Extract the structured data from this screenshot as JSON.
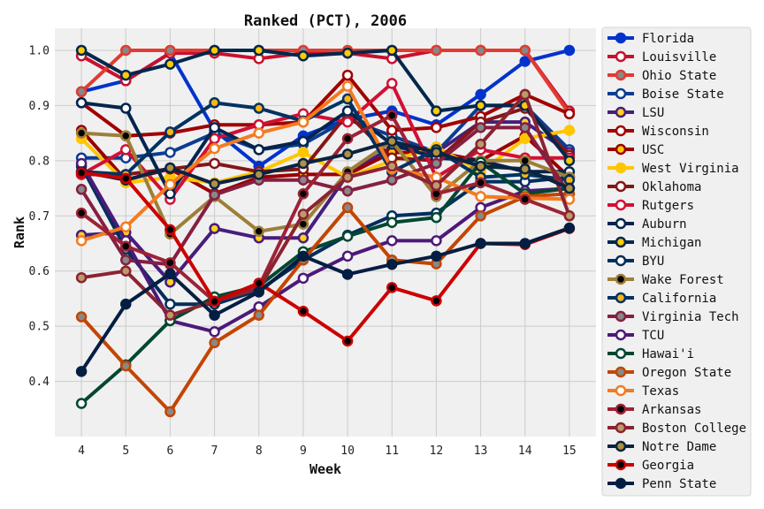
{
  "chart_data": {
    "type": "line",
    "title": "Ranked (PCT), 2006",
    "xlabel": "Week",
    "ylabel": "Rank",
    "x": [
      4,
      5,
      6,
      7,
      8,
      9,
      10,
      11,
      12,
      13,
      14,
      15
    ],
    "xlim": [
      3.4,
      15.6
    ],
    "ylim": [
      0.3,
      1.04
    ],
    "yticks": [
      0.4,
      0.5,
      0.6,
      0.7,
      0.8,
      0.9,
      1.0
    ],
    "yticklabels": [
      "0.4",
      "0.5",
      "0.6",
      "0.7",
      "0.8",
      "0.9",
      "1.0"
    ],
    "grid": true,
    "legend_position": "right",
    "series": [
      {
        "name": "Florida",
        "color": "#0033cc",
        "face": "#0033cc",
        "values": [
          0.925,
          0.945,
          0.995,
          0.855,
          0.79,
          0.845,
          0.875,
          0.89,
          0.865,
          0.92,
          0.98,
          1.0
        ]
      },
      {
        "name": "Louisville",
        "color": "#c8102e",
        "face": "#ffffff",
        "values": [
          0.99,
          0.945,
          0.995,
          0.995,
          0.985,
          0.995,
          0.995,
          0.985,
          1.0,
          1.0,
          1.0,
          0.89
        ]
      },
      {
        "name": "Ohio State",
        "color": "#e03c31",
        "face": "#888888",
        "values": [
          0.925,
          1.0,
          1.0,
          1.0,
          1.0,
          1.0,
          1.0,
          1.0,
          1.0,
          1.0,
          1.0,
          0.885
        ]
      },
      {
        "name": "Boise State",
        "color": "#0b3d91",
        "face": "#ffffff",
        "values": [
          0.805,
          0.805,
          0.815,
          0.85,
          0.82,
          0.83,
          0.875,
          0.845,
          0.815,
          0.9,
          0.9,
          0.82
        ]
      },
      {
        "name": "LSU",
        "color": "#461d7c",
        "face": "#fdd023",
        "values": [
          0.665,
          0.67,
          0.58,
          0.677,
          0.66,
          0.66,
          0.775,
          0.825,
          0.815,
          0.87,
          0.87,
          0.815
        ]
      },
      {
        "name": "Wisconsin",
        "color": "#a00000",
        "face": "#ffffff",
        "values": [
          0.905,
          0.845,
          0.85,
          0.865,
          0.865,
          0.87,
          0.955,
          0.855,
          0.86,
          0.88,
          0.92,
          0.885
        ]
      },
      {
        "name": "USC",
        "color": "#990000",
        "face": "#ffcc00",
        "values": [
          0.855,
          0.765,
          0.785,
          0.74,
          0.77,
          0.775,
          0.775,
          0.815,
          0.815,
          0.8,
          0.845,
          0.77
        ]
      },
      {
        "name": "West Virginia",
        "color": "#ffc600",
        "face": "#ffc600",
        "values": [
          0.84,
          0.76,
          0.77,
          0.76,
          0.78,
          0.815,
          0.77,
          0.8,
          0.825,
          0.78,
          0.84,
          0.855
        ]
      },
      {
        "name": "Oklahoma",
        "color": "#841617",
        "face": "#ffffff",
        "values": [
          0.775,
          0.775,
          0.785,
          0.795,
          0.78,
          0.785,
          0.885,
          0.805,
          0.8,
          0.87,
          0.895,
          0.81
        ]
      },
      {
        "name": "Rutgers",
        "color": "#d21034",
        "face": "#ffffff",
        "values": [
          0.775,
          0.82,
          0.73,
          0.84,
          0.865,
          0.885,
          0.87,
          0.94,
          0.77,
          0.82,
          0.805,
          0.805
        ]
      },
      {
        "name": "Auburn",
        "color": "#03244d",
        "face": "#ffffff",
        "values": [
          0.905,
          0.895,
          0.74,
          0.86,
          0.82,
          0.835,
          0.89,
          0.83,
          0.805,
          0.8,
          0.78,
          0.78
        ]
      },
      {
        "name": "Michigan",
        "color": "#00274c",
        "face": "#ffcb05",
        "values": [
          1.0,
          0.955,
          0.975,
          1.0,
          1.0,
          0.99,
          0.995,
          1.0,
          0.89,
          0.9,
          0.9,
          0.8
        ]
      },
      {
        "name": "BYU",
        "color": "#002e5d",
        "face": "#ffffff",
        "values": [
          0.79,
          0.64,
          0.54,
          0.54,
          0.565,
          0.62,
          0.665,
          0.7,
          0.705,
          0.762,
          0.762,
          0.77
        ]
      },
      {
        "name": "Wake Forest",
        "color": "#9e7e38",
        "face": "#000000",
        "values": [
          0.85,
          0.845,
          0.667,
          0.735,
          0.672,
          0.685,
          0.78,
          0.835,
          0.735,
          0.8,
          0.8,
          0.77
        ]
      },
      {
        "name": "California",
        "color": "#003262",
        "face": "#fdb515",
        "values": [
          0.78,
          0.775,
          0.852,
          0.905,
          0.895,
          0.872,
          0.912,
          0.78,
          0.82,
          0.77,
          0.775,
          0.765
        ]
      },
      {
        "name": "Virginia Tech",
        "color": "#861f41",
        "face": "#888888",
        "values": [
          0.748,
          0.62,
          0.612,
          0.738,
          0.765,
          0.765,
          0.745,
          0.765,
          0.795,
          0.86,
          0.86,
          0.74
        ]
      },
      {
        "name": "TCU",
        "color": "#4d1979",
        "face": "#ffffff",
        "values": [
          0.795,
          0.655,
          0.51,
          0.49,
          0.535,
          0.587,
          0.627,
          0.655,
          0.655,
          0.715,
          0.745,
          0.75
        ]
      },
      {
        "name": "Hawai'i",
        "color": "#024731",
        "face": "#ffffff",
        "values": [
          0.36,
          0.43,
          0.51,
          0.553,
          0.573,
          0.635,
          0.663,
          0.688,
          0.697,
          0.797,
          0.74,
          0.75
        ]
      },
      {
        "name": "Oregon State",
        "color": "#c34500",
        "face": "#888888",
        "values": [
          0.517,
          0.428,
          0.345,
          0.47,
          0.52,
          0.62,
          0.715,
          0.62,
          0.613,
          0.7,
          0.735,
          0.74
        ]
      },
      {
        "name": "Texas",
        "color": "#f47b20",
        "face": "#ffffff",
        "values": [
          0.655,
          0.68,
          0.757,
          0.822,
          0.85,
          0.87,
          0.935,
          0.785,
          0.77,
          0.735,
          0.732,
          0.73
        ]
      },
      {
        "name": "Arkansas",
        "color": "#9d2235",
        "face": "#000000",
        "values": [
          0.705,
          0.645,
          0.615,
          0.545,
          0.572,
          0.74,
          0.84,
          0.882,
          0.74,
          0.76,
          0.73,
          0.7
        ]
      },
      {
        "name": "Boston College",
        "color": "#8b2332",
        "face": "#bc9b6a",
        "values": [
          0.588,
          0.6,
          0.52,
          0.545,
          0.568,
          0.703,
          0.77,
          0.79,
          0.755,
          0.83,
          0.92,
          0.7
        ]
      },
      {
        "name": "Notre Dame",
        "color": "#0c2340",
        "face": "#ae9142",
        "values": [
          0.78,
          0.765,
          0.787,
          0.758,
          0.775,
          0.795,
          0.812,
          0.835,
          0.815,
          0.79,
          0.785,
          0.75
        ]
      },
      {
        "name": "Georgia",
        "color": "#cc0000",
        "face": "#000000",
        "values": [
          0.778,
          0.768,
          0.675,
          0.545,
          0.578,
          0.527,
          0.473,
          0.57,
          0.546,
          0.65,
          0.648,
          0.677
        ]
      },
      {
        "name": "Penn State",
        "color": "#041e42",
        "face": "#041e42",
        "values": [
          0.418,
          0.54,
          0.595,
          0.52,
          0.562,
          0.627,
          0.594,
          0.612,
          0.627,
          0.65,
          0.65,
          0.678
        ]
      }
    ]
  }
}
